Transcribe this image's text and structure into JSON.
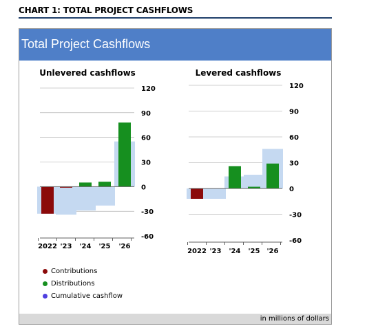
{
  "header": {
    "title": "CHART 1: TOTAL PROJECT CASHFLOWS"
  },
  "banner": {
    "title": "Total Project Cashflows"
  },
  "footer": {
    "note": "in millions of dollars"
  },
  "legend": [
    {
      "label": "Contributions",
      "color": "#8b0a0a"
    },
    {
      "label": "Distributions",
      "color": "#168f1f"
    },
    {
      "label": "Cumulative cashflow",
      "color": "#4f3fe0"
    }
  ],
  "colors": {
    "contribution": "#8b0a0a",
    "distribution": "#168f1f",
    "cumulative": "#c5d9f1"
  },
  "chart_data": [
    {
      "type": "bar",
      "title": "Unlevered cashflows",
      "categories": [
        "2022",
        "'23",
        "'24",
        "'25",
        "'26"
      ],
      "ylim": [
        -60,
        120
      ],
      "yticks": [
        120,
        90,
        60,
        30,
        0,
        -30,
        -60
      ],
      "grid": true,
      "series": [
        {
          "name": "Contributions",
          "values": [
            -33,
            -1,
            0,
            0,
            0
          ]
        },
        {
          "name": "Distributions",
          "values": [
            0,
            0,
            5,
            6,
            78
          ]
        },
        {
          "name": "Cumulative cashflow",
          "values": [
            -33,
            -34,
            -29,
            -23,
            55
          ]
        }
      ]
    },
    {
      "type": "bar",
      "title": "Levered cashflows",
      "categories": [
        "2022",
        "'23",
        "'24",
        "'25",
        "'26"
      ],
      "ylim": [
        -60,
        120
      ],
      "yticks": [
        120,
        90,
        60,
        30,
        0,
        -30,
        -60
      ],
      "grid": true,
      "series": [
        {
          "name": "Contributions",
          "values": [
            -12,
            0,
            0,
            0,
            0
          ]
        },
        {
          "name": "Distributions",
          "values": [
            0,
            0,
            26,
            2,
            29
          ]
        },
        {
          "name": "Cumulative cashflow",
          "values": [
            -12,
            -12,
            14,
            16,
            46
          ]
        }
      ]
    }
  ]
}
